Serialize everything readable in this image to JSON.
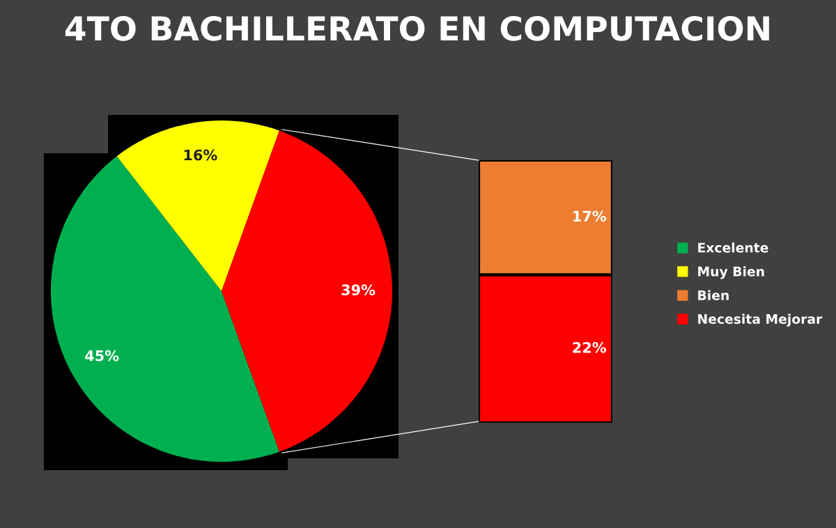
{
  "chart_data": [
    {
      "type": "pie",
      "title": "4TO BACHILLERATO EN COMPUTACION",
      "categories": [
        "Excelente",
        "Muy Bien",
        null
      ],
      "values": [
        45,
        16,
        39
      ],
      "colors": [
        "#00b050",
        "#ffff00",
        "#ff0000"
      ],
      "value_labels": [
        "45%",
        "16%",
        "39%"
      ],
      "legend": "right"
    },
    {
      "type": "bar",
      "stacked": true,
      "categories": [
        null
      ],
      "series": [
        {
          "name": "Necesita Mejorar",
          "color": "#ff0000",
          "values": [
            22
          ],
          "value_labels": [
            "22%"
          ]
        },
        {
          "name": "Bien",
          "color": "#ed7d31",
          "values": [
            17
          ],
          "value_labels": [
            "17%"
          ]
        }
      ],
      "legend": "right"
    }
  ]
}
